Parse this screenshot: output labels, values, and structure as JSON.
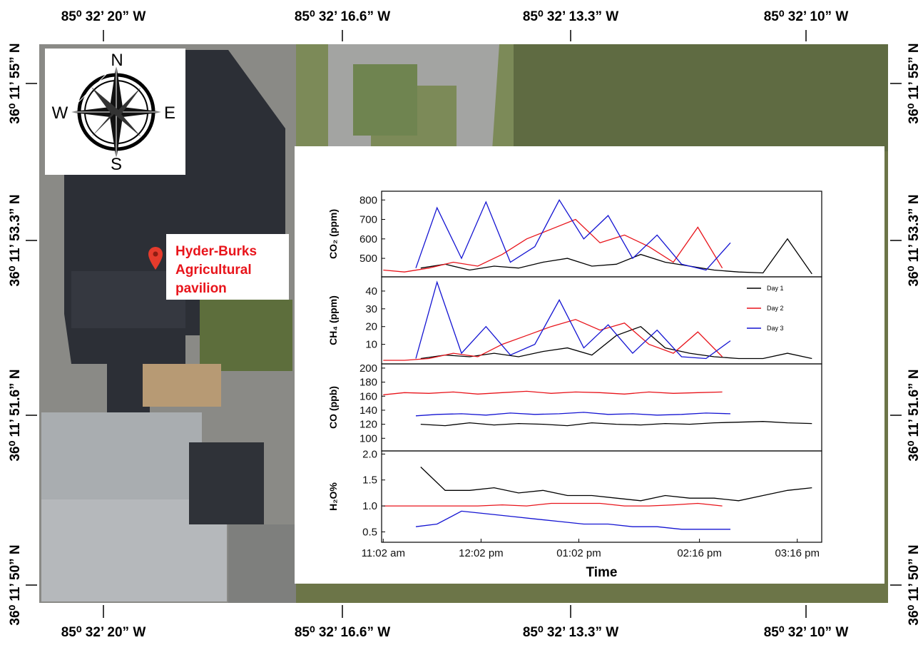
{
  "map": {
    "top_labels": [
      "85⁰ 32’ 20” W",
      "85⁰ 32’ 16.6” W",
      "85⁰ 32’ 13.3” W",
      "85⁰ 32’ 10” W"
    ],
    "bottom_labels": [
      "85⁰ 32’ 20” W",
      "85⁰ 32’ 16.6” W",
      "85⁰ 32’ 13.3” W",
      "85⁰ 32’ 10” W"
    ],
    "left_labels": [
      "36⁰ 11’ 55” N",
      "36⁰ 11’ 53.3” N",
      "36⁰ 11’ 51.6” N",
      "36⁰ 11’ 50” N"
    ],
    "right_labels": [
      "36⁰ 11’ 55” N",
      "36⁰ 11’ 53.3” N",
      "36⁰ 11’ 51.6” N",
      "36⁰ 11’ 50” N"
    ],
    "compass": [
      "N",
      "E",
      "S",
      "W"
    ],
    "place_label": [
      "Hyder-Burks",
      "Agricultural",
      "pavilion"
    ]
  },
  "chart_data": [
    {
      "type": "line",
      "ylabel": "CO₂ (ppm)",
      "ylim": [
        405,
        845
      ],
      "yticks": [
        500,
        600,
        700,
        800
      ],
      "series": [
        {
          "color": "#000000",
          "x": [
            685,
            700,
            715,
            730,
            745,
            760,
            775,
            790,
            805,
            820,
            835,
            850,
            865,
            880,
            895,
            910,
            925
          ],
          "values": [
            450,
            470,
            440,
            460,
            450,
            480,
            500,
            460,
            470,
            520,
            480,
            460,
            440,
            430,
            425,
            600,
            420
          ]
        },
        {
          "color": "#e8141b",
          "x": [
            662,
            675,
            690,
            705,
            720,
            735,
            750,
            765,
            780,
            795,
            810,
            825,
            840,
            855,
            870
          ],
          "values": [
            440,
            430,
            450,
            480,
            460,
            520,
            600,
            650,
            700,
            580,
            620,
            560,
            480,
            660,
            450
          ]
        },
        {
          "color": "#1414d2",
          "x": [
            682,
            695,
            710,
            725,
            740,
            755,
            770,
            785,
            800,
            815,
            830,
            845,
            860,
            875
          ],
          "values": [
            450,
            760,
            500,
            790,
            480,
            560,
            800,
            600,
            720,
            500,
            620,
            470,
            440,
            580
          ]
        }
      ]
    },
    {
      "type": "line",
      "ylabel": "CH₄ (ppm)",
      "ylim": [
        -1,
        48
      ],
      "yticks": [
        10,
        20,
        30,
        40
      ],
      "legend": "upper right",
      "series": [
        {
          "name": "Day 1",
          "color": "#000000",
          "x": [
            685,
            700,
            715,
            730,
            745,
            760,
            775,
            790,
            805,
            820,
            835,
            850,
            865,
            880,
            895,
            910,
            925
          ],
          "values": [
            2,
            4,
            3,
            5,
            3,
            6,
            8,
            4,
            15,
            20,
            8,
            5,
            3,
            2,
            2,
            5,
            2
          ]
        },
        {
          "name": "Day 2",
          "color": "#e8141b",
          "x": [
            662,
            675,
            690,
            705,
            720,
            735,
            750,
            765,
            780,
            795,
            810,
            825,
            840,
            855,
            870
          ],
          "values": [
            1,
            1,
            2,
            5,
            3,
            10,
            15,
            20,
            24,
            18,
            22,
            10,
            5,
            17,
            3
          ]
        },
        {
          "name": "Day 3",
          "color": "#1414d2",
          "x": [
            682,
            695,
            710,
            725,
            740,
            755,
            770,
            785,
            800,
            815,
            830,
            845,
            860,
            875
          ],
          "values": [
            2,
            45,
            5,
            20,
            4,
            10,
            35,
            8,
            21,
            5,
            18,
            3,
            2,
            12
          ]
        }
      ]
    },
    {
      "type": "line",
      "ylabel": "CO (ppb)",
      "ylim": [
        82,
        206
      ],
      "yticks": [
        100,
        120,
        140,
        160,
        180,
        200
      ],
      "series": [
        {
          "color": "#000000",
          "x": [
            685,
            700,
            715,
            730,
            745,
            760,
            775,
            790,
            805,
            820,
            835,
            850,
            865,
            880,
            895,
            910,
            925
          ],
          "values": [
            120,
            118,
            122,
            119,
            121,
            120,
            118,
            122,
            120,
            119,
            121,
            120,
            122,
            123,
            124,
            122,
            121
          ]
        },
        {
          "color": "#e8141b",
          "x": [
            662,
            675,
            690,
            705,
            720,
            735,
            750,
            765,
            780,
            795,
            810,
            825,
            840,
            855,
            870
          ],
          "values": [
            162,
            165,
            164,
            166,
            163,
            165,
            167,
            164,
            166,
            165,
            163,
            166,
            164,
            165,
            166
          ]
        },
        {
          "color": "#1414d2",
          "x": [
            682,
            695,
            710,
            725,
            740,
            755,
            770,
            785,
            800,
            815,
            830,
            845,
            860,
            875
          ],
          "values": [
            132,
            134,
            135,
            133,
            136,
            134,
            135,
            137,
            134,
            135,
            133,
            134,
            136,
            135
          ]
        }
      ]
    },
    {
      "type": "line",
      "ylabel": "H₂O%",
      "ylim": [
        0.3,
        2.06
      ],
      "yticks": [
        {
          "value": 2,
          "label": "2.0"
        },
        1.5,
        {
          "value": 1,
          "label": "1.0"
        },
        0.5
      ],
      "xlabel": "Time",
      "xlim": [
        661,
        931
      ],
      "xticks": [
        {
          "value": 662,
          "label": "11:02 am"
        },
        {
          "value": 722,
          "label": "12:02 pm"
        },
        {
          "value": 782,
          "label": "01:02 pm"
        },
        {
          "value": 856,
          "label": "02:16 pm"
        },
        {
          "value": 916,
          "label": "03:16 pm"
        }
      ],
      "series": [
        {
          "color": "#000000",
          "x": [
            685,
            700,
            715,
            730,
            745,
            760,
            775,
            790,
            805,
            820,
            835,
            850,
            865,
            880,
            895,
            910,
            925
          ],
          "values": [
            1.75,
            1.3,
            1.3,
            1.35,
            1.25,
            1.3,
            1.2,
            1.2,
            1.15,
            1.1,
            1.2,
            1.15,
            1.15,
            1.1,
            1.2,
            1.3,
            1.35
          ]
        },
        {
          "color": "#e8141b",
          "x": [
            662,
            675,
            690,
            705,
            720,
            735,
            750,
            765,
            780,
            795,
            810,
            825,
            840,
            855,
            870
          ],
          "values": [
            1,
            1,
            1,
            1,
            1,
            1.02,
            1,
            1.05,
            1.05,
            1.05,
            1,
            1,
            1.02,
            1.05,
            1
          ]
        },
        {
          "color": "#1414d2",
          "x": [
            682,
            695,
            710,
            725,
            740,
            755,
            770,
            785,
            800,
            815,
            830,
            845,
            860,
            875
          ],
          "values": [
            0.6,
            0.65,
            0.9,
            0.85,
            0.8,
            0.75,
            0.7,
            0.65,
            0.65,
            0.6,
            0.6,
            0.55,
            0.55,
            0.55
          ]
        }
      ]
    }
  ]
}
